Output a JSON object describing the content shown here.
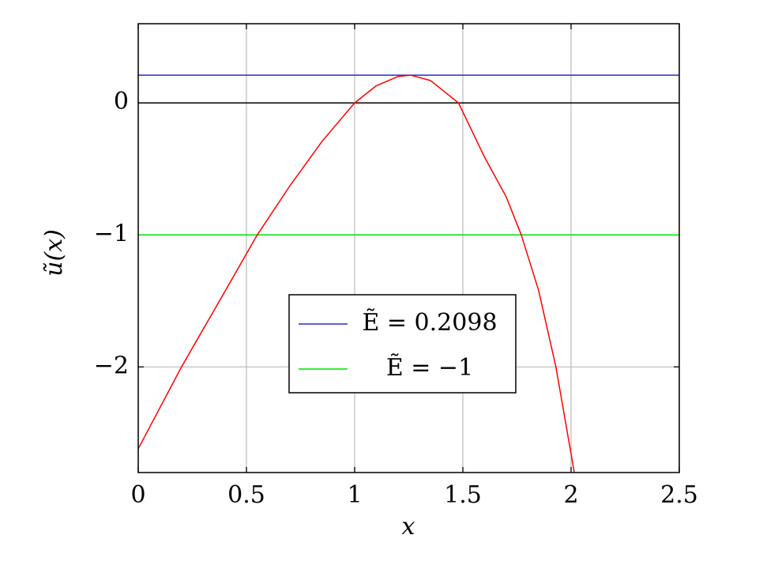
{
  "chart_data": {
    "type": "line",
    "xlabel": "x",
    "ylabel": "ũ(x)",
    "xlim": [
      0,
      2.5
    ],
    "ylim": [
      -2.8,
      0.6
    ],
    "xticks": [
      0,
      0.5,
      1,
      1.5,
      2,
      2.5
    ],
    "yticks": [
      {
        "value": -2,
        "label": "−2"
      },
      {
        "value": -1,
        "label": "−1"
      },
      0
    ],
    "grid": true,
    "legend": "lower center",
    "curve": {
      "color": "#ff0000",
      "x": [
        0,
        0.2,
        0.4,
        0.55,
        0.7,
        0.85,
        1.0,
        1.1,
        1.2,
        1.26,
        1.35,
        1.48,
        1.6,
        1.7,
        1.77,
        1.85,
        1.93,
        2.015
      ],
      "values": [
        -2.62,
        -2.0,
        -1.43,
        -1.0,
        -0.63,
        -0.29,
        0.0,
        0.13,
        0.2,
        0.2098,
        0.17,
        0.0,
        -0.41,
        -0.71,
        -1.0,
        -1.42,
        -2.0,
        -2.8
      ]
    },
    "hlines": [
      {
        "name": "Ẽ = 0.2098",
        "color": "#2a2ac8",
        "value": 0.2098
      },
      {
        "name": "Ẽ = −1",
        "color": "#00e000",
        "value": -1
      },
      {
        "color": "#000000",
        "value": 0
      }
    ]
  }
}
